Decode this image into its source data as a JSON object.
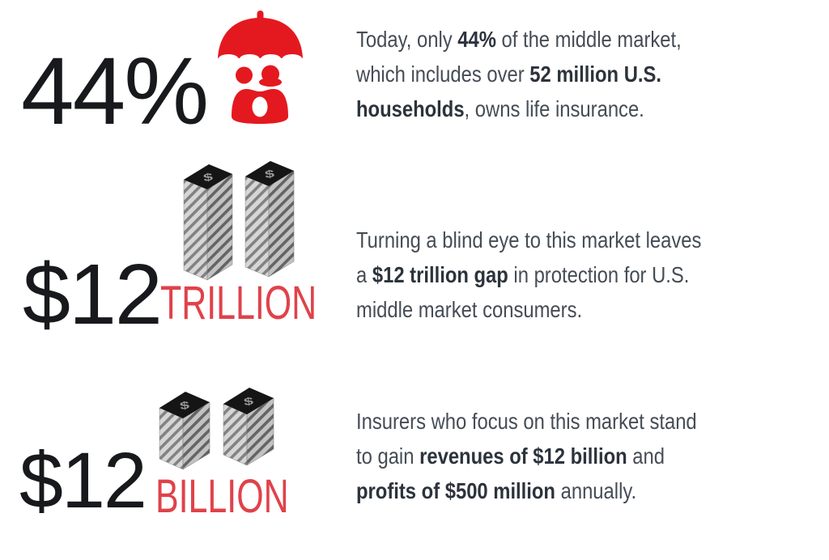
{
  "colors": {
    "red": "#e4191f",
    "red-text": "#e0424a",
    "stat-black": "#17191d",
    "body-text": "#454c55",
    "body-bold": "#2c333c",
    "stack-top": "#151515",
    "stack-dollar": "#9a9a9a",
    "stack-face": "#d6d6d6",
    "stack-stripe": "#828282",
    "stack-face-dark": "#c2c2c2",
    "stack-stripe-dark": "#646464"
  },
  "icons": {
    "dollar_sign": "$",
    "umbrella": "family-under-umbrella",
    "money_tall": "money-stack-tall",
    "money_cube": "money-stack-cube"
  },
  "rows": [
    {
      "stat": "44%",
      "lines": [
        [
          {
            "t": "Today, only ",
            "b": false
          },
          {
            "t": "44%",
            "b": true
          },
          {
            "t": " of the middle market,",
            "b": false
          }
        ],
        [
          {
            "t": "which includes over ",
            "b": false
          },
          {
            "t": "52 million U.S.",
            "b": true
          }
        ],
        [
          {
            "t": "households",
            "b": true
          },
          {
            "t": ", owns life insurance.",
            "b": false
          }
        ]
      ]
    },
    {
      "stat": "$12",
      "unit": "TRILLION",
      "lines": [
        [
          {
            "t": "Turning a blind eye to this market leaves",
            "b": false
          }
        ],
        [
          {
            "t": "a ",
            "b": false
          },
          {
            "t": "$12 trillion gap",
            "b": true
          },
          {
            "t": " in protection for U.S.",
            "b": false
          }
        ],
        [
          {
            "t": "middle market consumers.",
            "b": false
          }
        ]
      ]
    },
    {
      "stat": "$12",
      "unit": "BILLION",
      "lines": [
        [
          {
            "t": "Insurers who focus on this market stand",
            "b": false
          }
        ],
        [
          {
            "t": "to gain ",
            "b": false
          },
          {
            "t": "revenues of $12 billion",
            "b": true
          },
          {
            "t": " and",
            "b": false
          }
        ],
        [
          {
            "t": "profits of $500 million",
            "b": true
          },
          {
            "t": " annually.",
            "b": false
          }
        ]
      ]
    }
  ]
}
